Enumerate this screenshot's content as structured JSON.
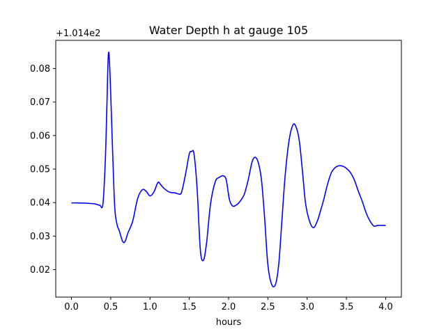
{
  "chart_data": {
    "type": "line",
    "title": "Water Depth h at gauge 105",
    "xlabel": "hours",
    "ylabel": "",
    "y_offset_label": "+1.014e2",
    "xlim": [
      -0.2,
      4.2
    ],
    "ylim": [
      0.0118,
      0.0884
    ],
    "x_ticks": [
      0.0,
      0.5,
      1.0,
      1.5,
      2.0,
      2.5,
      3.0,
      3.5,
      4.0
    ],
    "x_tick_labels": [
      "0.0",
      "0.5",
      "1.0",
      "1.5",
      "2.0",
      "2.5",
      "3.0",
      "3.5",
      "4.0"
    ],
    "y_ticks": [
      0.02,
      0.03,
      0.04,
      0.05,
      0.06,
      0.07,
      0.08
    ],
    "y_tick_labels": [
      "0.02",
      "0.03",
      "0.04",
      "0.05",
      "0.06",
      "0.07",
      "0.08"
    ],
    "grid": false,
    "series": [
      {
        "color": "#0000ff",
        "x": [
          0.0,
          0.1,
          0.2,
          0.3,
          0.36,
          0.4,
          0.43,
          0.45,
          0.47,
          0.49,
          0.52,
          0.55,
          0.58,
          0.61,
          0.65,
          0.68,
          0.72,
          0.78,
          0.84,
          0.9,
          0.95,
          1.0,
          1.05,
          1.1,
          1.13,
          1.18,
          1.25,
          1.32,
          1.36,
          1.4,
          1.45,
          1.5,
          1.53,
          1.56,
          1.6,
          1.64,
          1.68,
          1.72,
          1.77,
          1.83,
          1.88,
          1.93,
          1.97,
          2.01,
          2.05,
          2.1,
          2.15,
          2.2,
          2.25,
          2.3,
          2.34,
          2.38,
          2.42,
          2.46,
          2.5,
          2.55,
          2.6,
          2.64,
          2.68,
          2.72,
          2.77,
          2.82,
          2.86,
          2.9,
          2.94,
          2.98,
          3.03,
          3.08,
          3.13,
          3.17,
          3.21,
          3.26,
          3.31,
          3.36,
          3.41,
          3.46,
          3.5,
          3.55,
          3.6,
          3.65,
          3.7,
          3.75,
          3.8,
          3.85,
          3.9,
          3.95,
          4.0
        ],
        "y": [
          0.0399,
          0.0399,
          0.0398,
          0.0396,
          0.0392,
          0.0395,
          0.052,
          0.068,
          0.0843,
          0.079,
          0.058,
          0.039,
          0.0335,
          0.0315,
          0.0285,
          0.0283,
          0.031,
          0.0345,
          0.041,
          0.0438,
          0.0434,
          0.042,
          0.0432,
          0.046,
          0.0455,
          0.0442,
          0.0431,
          0.0429,
          0.0426,
          0.043,
          0.0482,
          0.0545,
          0.0552,
          0.0545,
          0.044,
          0.026,
          0.0228,
          0.028,
          0.0395,
          0.0462,
          0.0475,
          0.048,
          0.0468,
          0.041,
          0.039,
          0.0393,
          0.0405,
          0.0425,
          0.0468,
          0.0522,
          0.0535,
          0.0518,
          0.0465,
          0.035,
          0.0215,
          0.0155,
          0.0158,
          0.022,
          0.035,
          0.048,
          0.0585,
          0.0632,
          0.0625,
          0.0585,
          0.0495,
          0.0398,
          0.0345,
          0.0325,
          0.0345,
          0.0375,
          0.0408,
          0.0455,
          0.049,
          0.0505,
          0.051,
          0.0508,
          0.0502,
          0.049,
          0.0468,
          0.0435,
          0.0405,
          0.037,
          0.0345,
          0.033,
          0.0332,
          0.0332,
          0.0332
        ]
      }
    ]
  }
}
